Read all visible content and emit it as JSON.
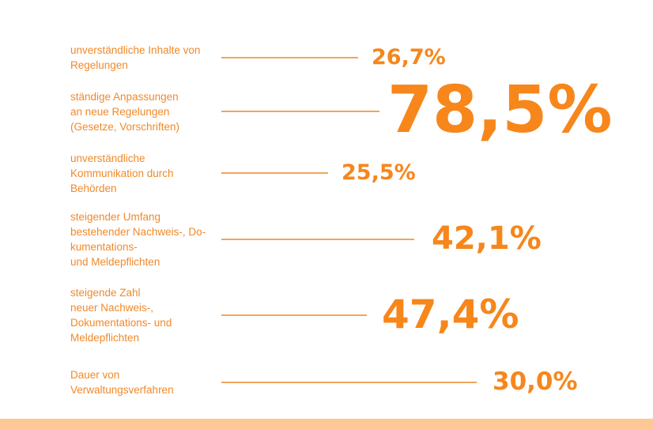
{
  "chart_data": {
    "type": "bar",
    "categories": [
      "unverständliche Inhalte von Regelungen",
      "ständige Anpassungen an neue Regelungen (Gesetze, Vorschriften)",
      "unverständliche Kommunikation durch Behörden",
      "steigender Umfang bestehender Nachweis-, Dokumentations- und Meldepflichten",
      "steigende Zahl neuer Nachweis-, Dokumentations- und Meldepflichten",
      "Dauer von Verwaltungsverfahren"
    ],
    "label_lines": [
      [
        "unverständliche Inhalte von",
        "Regelungen"
      ],
      [
        "ständige Anpassungen",
        "an neue Regelungen",
        "(Gesetze, Vorschriften)"
      ],
      [
        "unverständliche",
        "Kommunikation durch",
        "Behörden"
      ],
      [
        "steigender Umfang",
        "bestehender Nachweis-, Do-",
        "kumentations-",
        "und Meldepflichten"
      ],
      [
        "steigende Zahl",
        "neuer Nachweis-,",
        "Dokumentations- und",
        "Meldepflichten"
      ],
      [
        "Dauer von",
        "Verwaltungsverfahren"
      ]
    ],
    "values": [
      26.7,
      78.5,
      25.5,
      42.1,
      47.4,
      30.0
    ],
    "value_labels": [
      "26,7%",
      "78,5%",
      "25,5%",
      "42,1%",
      "47,4%",
      "30,0%"
    ],
    "unit": "%",
    "colors": {
      "text": "#f0892a",
      "value": "#f7861b",
      "line": "#f2a55a",
      "band": "#fdc896"
    }
  }
}
